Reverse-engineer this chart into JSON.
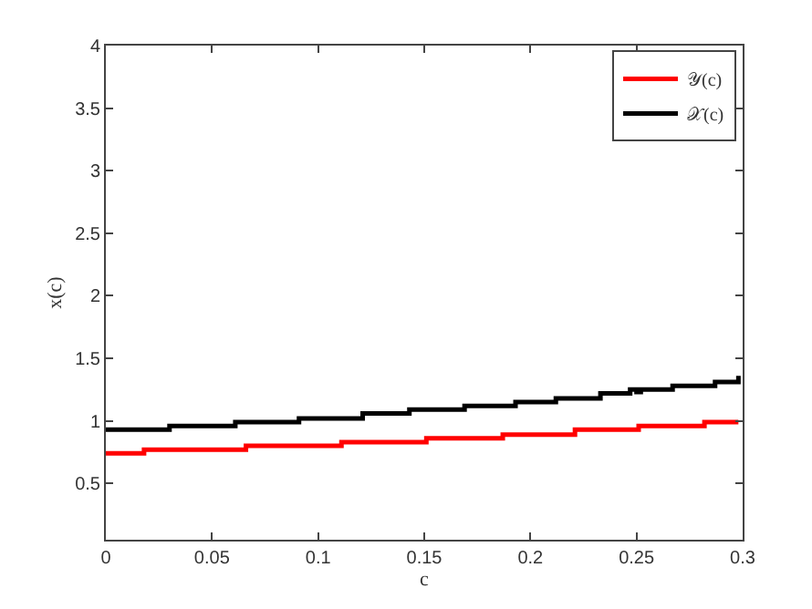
{
  "chart_data": {
    "type": "step",
    "xlabel": "c",
    "ylabel": "x(c)",
    "xlim": [
      0,
      0.3
    ],
    "ylim": [
      0.05,
      4
    ],
    "xticks": [
      0,
      0.05,
      0.1,
      0.15,
      0.2,
      0.25,
      0.3
    ],
    "yticks": [
      0.5,
      1,
      1.5,
      2,
      2.5,
      3,
      3.5,
      4
    ],
    "legend": "top right",
    "marker": "none",
    "line_style": "solid",
    "series": [
      {
        "name": "𝒴(c)",
        "color": "#ff0000",
        "x": [
          0,
          0.018,
          0.066,
          0.111,
          0.151,
          0.187,
          0.221,
          0.251,
          0.282,
          0.298
        ],
        "values": [
          0.74,
          0.77,
          0.8,
          0.83,
          0.86,
          0.89,
          0.93,
          0.96,
          0.99,
          0.99
        ]
      },
      {
        "name": "𝒳(c)",
        "color": "#000000",
        "x": [
          0,
          0.03,
          0.061,
          0.091,
          0.121,
          0.143,
          0.169,
          0.193,
          0.212,
          0.233,
          0.247,
          0.25,
          0.252,
          0.267,
          0.287,
          0.296,
          0.298
        ],
        "values": [
          0.93,
          0.96,
          0.99,
          1.02,
          1.06,
          1.09,
          1.12,
          1.15,
          1.18,
          1.22,
          1.25,
          1.23,
          1.25,
          1.28,
          1.31,
          1.31,
          1.36
        ]
      }
    ]
  }
}
